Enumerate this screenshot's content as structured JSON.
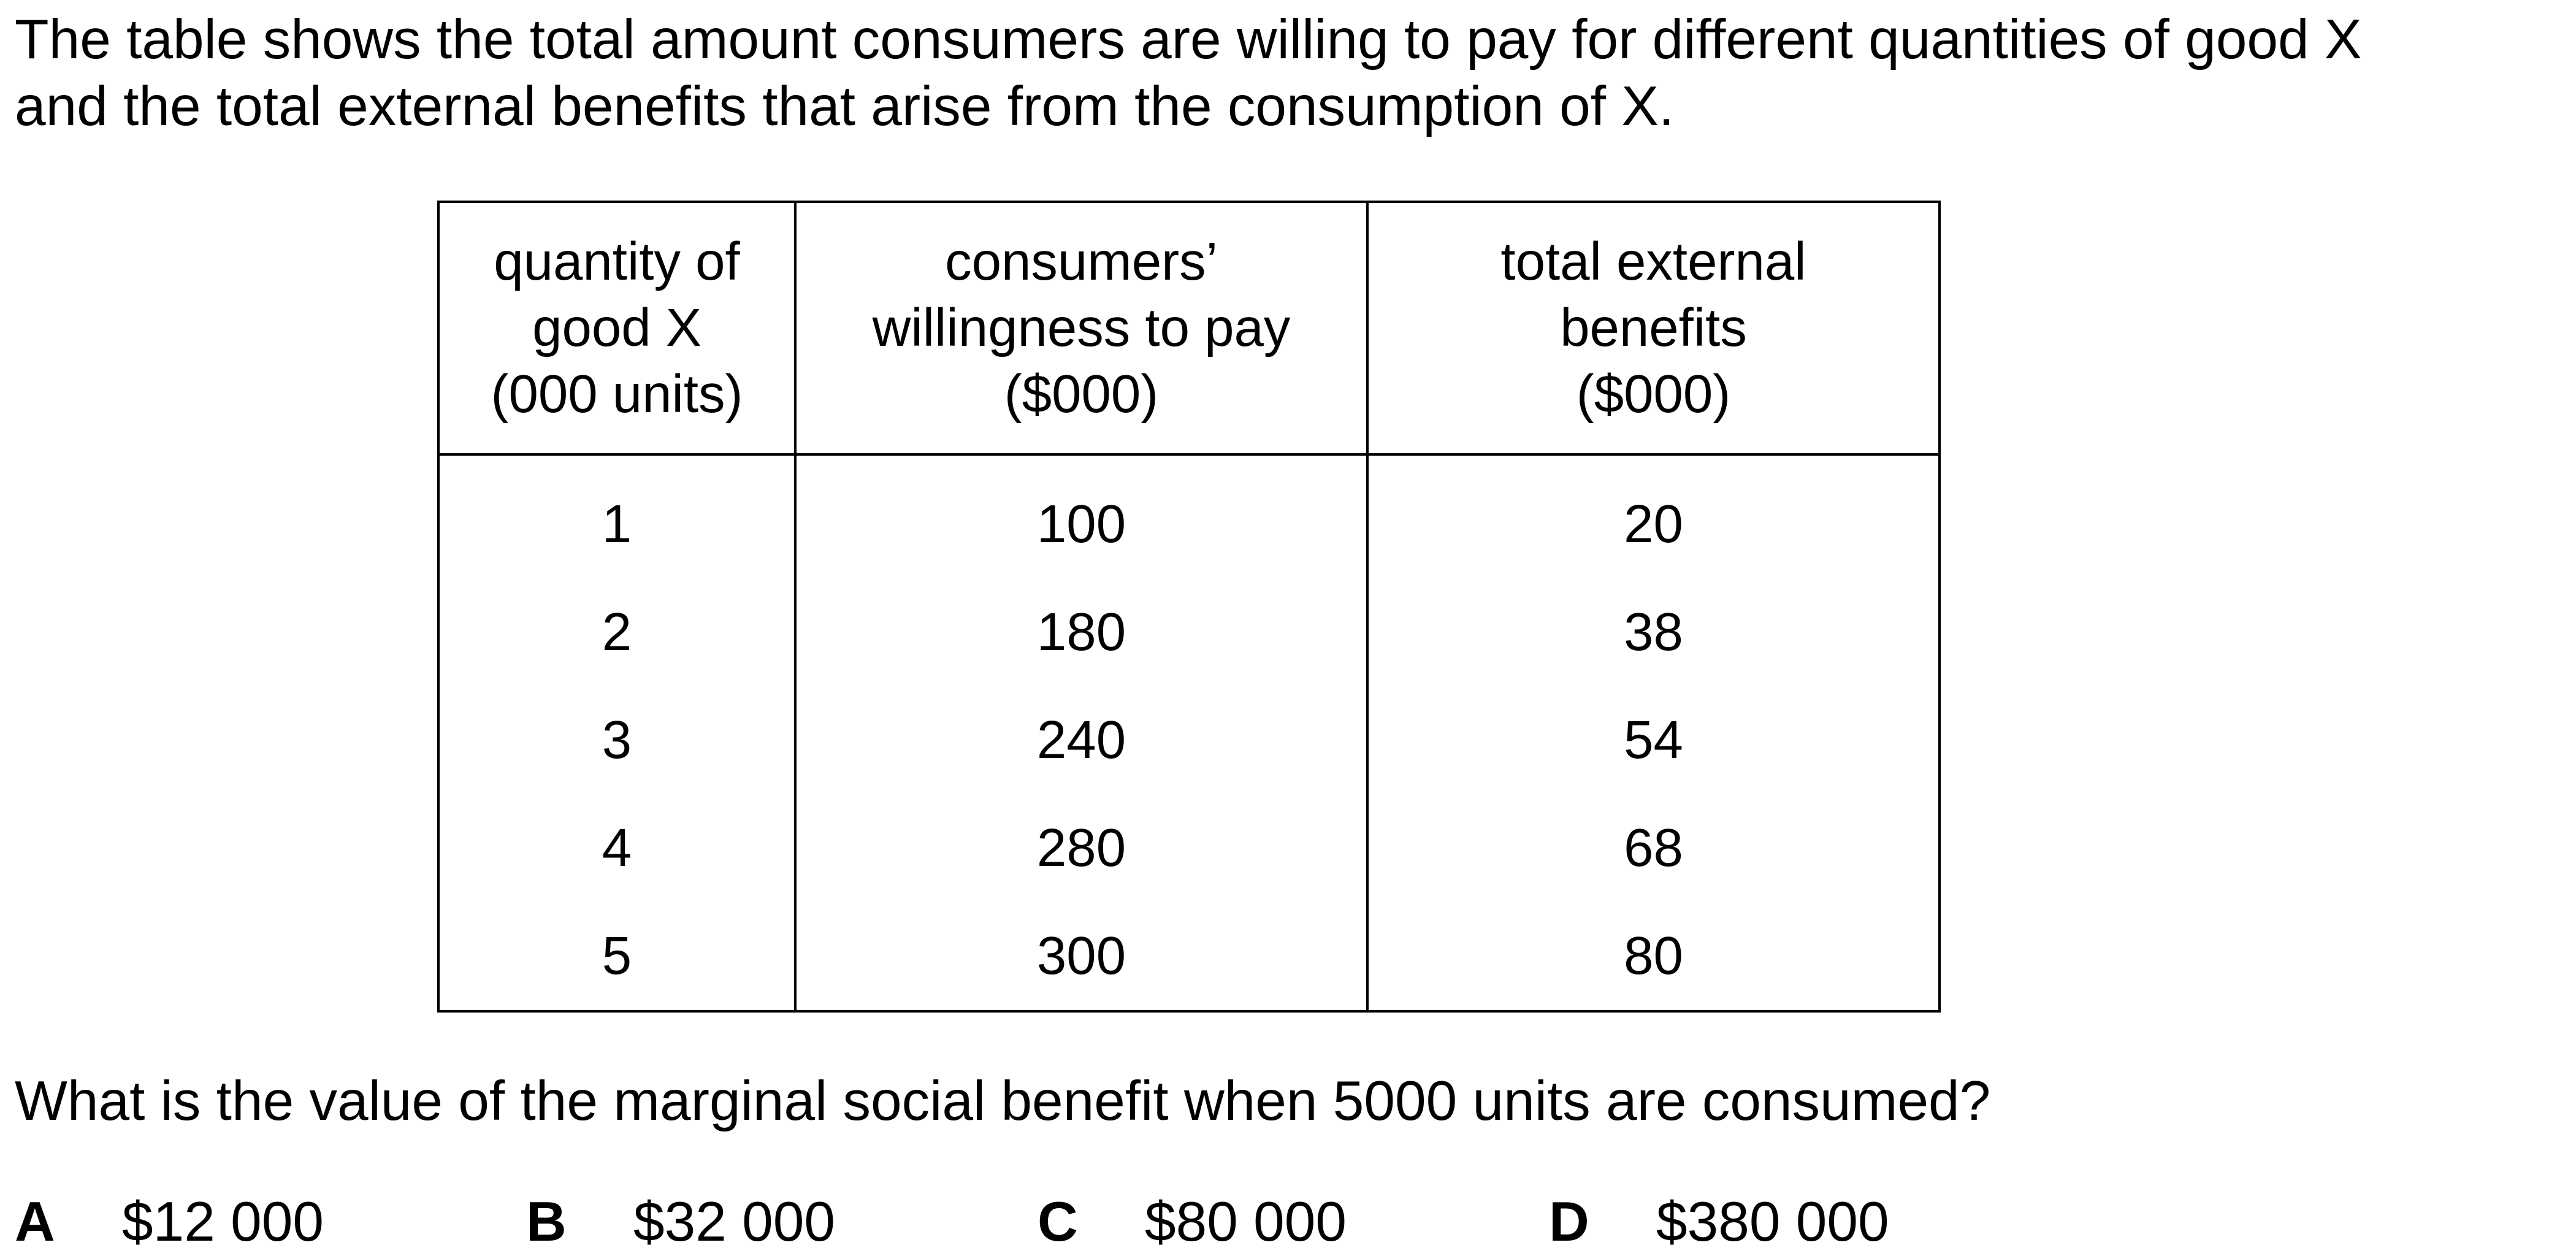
{
  "intro": {
    "line1": "The table shows the total amount consumers are willing to pay for different quantities of good X",
    "line2": "and the total external benefits that arise from the consumption of X."
  },
  "table": {
    "headers": [
      [
        "quantity of",
        "good X",
        "(000 units)"
      ],
      [
        "consumers’",
        "willingness to pay",
        "($000)"
      ],
      [
        "total external",
        "benefits",
        "($000)"
      ]
    ],
    "rows": [
      [
        "1",
        "100",
        "20"
      ],
      [
        "2",
        "180",
        "38"
      ],
      [
        "3",
        "240",
        "54"
      ],
      [
        "4",
        "280",
        "68"
      ],
      [
        "5",
        "300",
        "80"
      ]
    ]
  },
  "question": "What is the value of the marginal social benefit when 5000 units are consumed?",
  "options": [
    {
      "letter": "A",
      "value": "$12 000"
    },
    {
      "letter": "B",
      "value": "$32 000"
    },
    {
      "letter": "C",
      "value": "$80 000"
    },
    {
      "letter": "D",
      "value": "$380 000"
    }
  ]
}
